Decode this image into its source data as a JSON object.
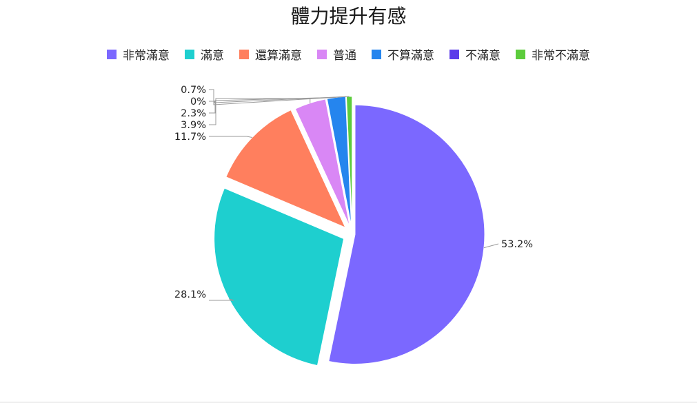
{
  "chart_data": {
    "type": "pie",
    "title": "體力提升有感",
    "legend_position": "top",
    "categories": [
      "非常滿意",
      "滿意",
      "還算滿意",
      "普通",
      "不算滿意",
      "不滿意",
      "非常不滿意"
    ],
    "values": [
      53.2,
      28.1,
      11.7,
      3.9,
      2.3,
      0,
      0.7
    ],
    "labels": [
      "53.2%",
      "28.1%",
      "11.7%",
      "3.9%",
      "2.3%",
      "0%",
      "0.7%"
    ],
    "colors": [
      "#7b68ff",
      "#1ecfcf",
      "#ff7f5e",
      "#d987f5",
      "#2585ee",
      "#5b3bea",
      "#5ccc3c"
    ]
  }
}
